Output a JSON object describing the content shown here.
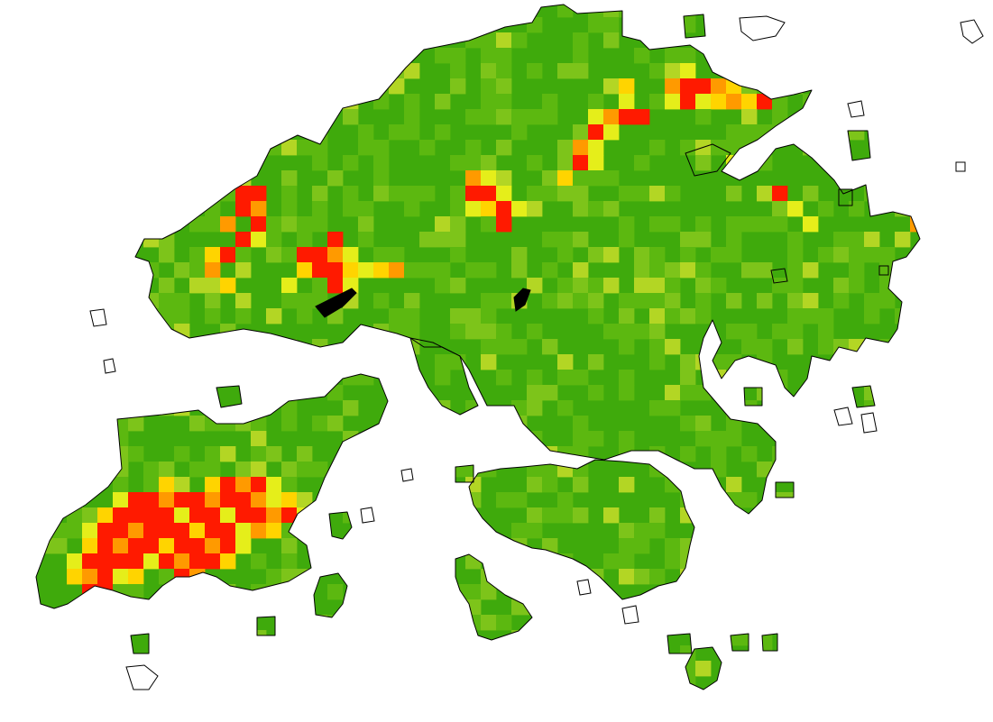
{
  "map": {
    "cell_grid_units": 17.0,
    "legend": "none",
    "colors": {
      "background": "#ffffff",
      "coastline": "#000000",
      "level_0": "#3FAA0C",
      "level_1": "#5CB810",
      "level_2": "#7DC41A",
      "level_3": "#B3D624",
      "level_4": "#E5EE1A",
      "level_5": "#FFD400",
      "level_6": "#FF9A00",
      "level_7": "#FF1A00"
    },
    "hotspots": [
      {
        "col": 13,
        "row": 12,
        "level": 7
      },
      {
        "col": 14,
        "row": 12,
        "level": 7
      },
      {
        "col": 13,
        "row": 13,
        "level": 7
      },
      {
        "col": 14,
        "row": 14,
        "level": 7
      },
      {
        "col": 12,
        "row": 14,
        "level": 6
      },
      {
        "col": 13,
        "row": 15,
        "level": 7
      },
      {
        "col": 12,
        "row": 16,
        "level": 7
      },
      {
        "col": 11,
        "row": 17,
        "level": 6
      },
      {
        "col": 12,
        "row": 18,
        "level": 5
      },
      {
        "col": 14,
        "row": 13,
        "level": 6
      },
      {
        "col": 11,
        "row": 16,
        "level": 5
      },
      {
        "col": 14,
        "row": 15,
        "level": 4
      },
      {
        "col": 17,
        "row": 16,
        "level": 7
      },
      {
        "col": 18,
        "row": 16,
        "level": 7
      },
      {
        "col": 19,
        "row": 16,
        "level": 6
      },
      {
        "col": 18,
        "row": 17,
        "level": 7
      },
      {
        "col": 19,
        "row": 17,
        "level": 7
      },
      {
        "col": 17,
        "row": 17,
        "level": 5
      },
      {
        "col": 20,
        "row": 17,
        "level": 5
      },
      {
        "col": 21,
        "row": 17,
        "level": 4
      },
      {
        "col": 19,
        "row": 15,
        "level": 7
      },
      {
        "col": 20,
        "row": 18,
        "level": 4
      },
      {
        "col": 16,
        "row": 18,
        "level": 4
      },
      {
        "col": 22,
        "row": 17,
        "level": 5
      },
      {
        "col": 19,
        "row": 18,
        "level": 7
      },
      {
        "col": 20,
        "row": 16,
        "level": 4
      },
      {
        "col": 23,
        "row": 17,
        "level": 6
      },
      {
        "col": 28,
        "row": 11,
        "level": 6
      },
      {
        "col": 29,
        "row": 11,
        "level": 4
      },
      {
        "col": 28,
        "row": 12,
        "level": 7
      },
      {
        "col": 29,
        "row": 12,
        "level": 7
      },
      {
        "col": 30,
        "row": 12,
        "level": 4
      },
      {
        "col": 29,
        "row": 13,
        "level": 5
      },
      {
        "col": 30,
        "row": 13,
        "level": 7
      },
      {
        "col": 31,
        "row": 13,
        "level": 4
      },
      {
        "col": 28,
        "row": 13,
        "level": 4
      },
      {
        "col": 30,
        "row": 14,
        "level": 7
      },
      {
        "col": 36,
        "row": 7,
        "level": 4
      },
      {
        "col": 37,
        "row": 7,
        "level": 6
      },
      {
        "col": 38,
        "row": 7,
        "level": 7
      },
      {
        "col": 39,
        "row": 7,
        "level": 7
      },
      {
        "col": 36,
        "row": 8,
        "level": 7
      },
      {
        "col": 37,
        "row": 8,
        "level": 4
      },
      {
        "col": 35,
        "row": 9,
        "level": 6
      },
      {
        "col": 36,
        "row": 9,
        "level": 4
      },
      {
        "col": 35,
        "row": 10,
        "level": 7
      },
      {
        "col": 36,
        "row": 10,
        "level": 4
      },
      {
        "col": 34,
        "row": 11,
        "level": 5
      },
      {
        "col": 38,
        "row": 6,
        "level": 4
      },
      {
        "col": 41,
        "row": 5,
        "level": 6
      },
      {
        "col": 42,
        "row": 5,
        "level": 7
      },
      {
        "col": 42,
        "row": 6,
        "level": 7
      },
      {
        "col": 43,
        "row": 5,
        "level": 7
      },
      {
        "col": 44,
        "row": 5,
        "level": 6
      },
      {
        "col": 45,
        "row": 5,
        "level": 5
      },
      {
        "col": 43,
        "row": 6,
        "level": 4
      },
      {
        "col": 44,
        "row": 6,
        "level": 5
      },
      {
        "col": 45,
        "row": 6,
        "level": 6
      },
      {
        "col": 46,
        "row": 6,
        "level": 5
      },
      {
        "col": 47,
        "row": 6,
        "level": 7
      },
      {
        "col": 41,
        "row": 6,
        "level": 4
      },
      {
        "col": 44,
        "row": 3,
        "level": 6
      },
      {
        "col": 42,
        "row": 4,
        "level": 4
      },
      {
        "col": 38,
        "row": 5,
        "level": 5
      },
      {
        "col": 45,
        "row": 10,
        "level": 4
      },
      {
        "col": 46,
        "row": 10,
        "level": 5
      },
      {
        "col": 48,
        "row": 12,
        "level": 7
      },
      {
        "col": 49,
        "row": 13,
        "level": 4
      },
      {
        "col": 57,
        "row": 14,
        "level": 6
      },
      {
        "col": 58,
        "row": 14,
        "level": 4
      },
      {
        "col": 50,
        "row": 14,
        "level": 4
      },
      {
        "col": 5,
        "row": 32,
        "level": 4
      },
      {
        "col": 6,
        "row": 32,
        "level": 7
      },
      {
        "col": 7,
        "row": 32,
        "level": 7
      },
      {
        "col": 8,
        "row": 32,
        "level": 6
      },
      {
        "col": 9,
        "row": 32,
        "level": 7
      },
      {
        "col": 10,
        "row": 32,
        "level": 7
      },
      {
        "col": 11,
        "row": 32,
        "level": 6
      },
      {
        "col": 12,
        "row": 32,
        "level": 7
      },
      {
        "col": 13,
        "row": 32,
        "level": 7
      },
      {
        "col": 14,
        "row": 32,
        "level": 6
      },
      {
        "col": 15,
        "row": 32,
        "level": 4
      },
      {
        "col": 16,
        "row": 32,
        "level": 5
      },
      {
        "col": 4,
        "row": 33,
        "level": 5
      },
      {
        "col": 5,
        "row": 33,
        "level": 7
      },
      {
        "col": 6,
        "row": 33,
        "level": 7
      },
      {
        "col": 7,
        "row": 33,
        "level": 7
      },
      {
        "col": 8,
        "row": 33,
        "level": 7
      },
      {
        "col": 9,
        "row": 33,
        "level": 4
      },
      {
        "col": 10,
        "row": 33,
        "level": 7
      },
      {
        "col": 11,
        "row": 33,
        "level": 7
      },
      {
        "col": 12,
        "row": 33,
        "level": 4
      },
      {
        "col": 13,
        "row": 33,
        "level": 7
      },
      {
        "col": 14,
        "row": 33,
        "level": 7
      },
      {
        "col": 15,
        "row": 33,
        "level": 6
      },
      {
        "col": 3,
        "row": 34,
        "level": 4
      },
      {
        "col": 4,
        "row": 34,
        "level": 7
      },
      {
        "col": 5,
        "row": 34,
        "level": 7
      },
      {
        "col": 6,
        "row": 34,
        "level": 6
      },
      {
        "col": 7,
        "row": 34,
        "level": 7
      },
      {
        "col": 8,
        "row": 34,
        "level": 7
      },
      {
        "col": 9,
        "row": 34,
        "level": 7
      },
      {
        "col": 10,
        "row": 34,
        "level": 5
      },
      {
        "col": 11,
        "row": 34,
        "level": 7
      },
      {
        "col": 12,
        "row": 34,
        "level": 7
      },
      {
        "col": 13,
        "row": 34,
        "level": 4
      },
      {
        "col": 14,
        "row": 34,
        "level": 6
      },
      {
        "col": 3,
        "row": 35,
        "level": 5
      },
      {
        "col": 4,
        "row": 35,
        "level": 7
      },
      {
        "col": 5,
        "row": 35,
        "level": 6
      },
      {
        "col": 6,
        "row": 35,
        "level": 7
      },
      {
        "col": 7,
        "row": 35,
        "level": 7
      },
      {
        "col": 8,
        "row": 35,
        "level": 5
      },
      {
        "col": 9,
        "row": 35,
        "level": 7
      },
      {
        "col": 10,
        "row": 35,
        "level": 7
      },
      {
        "col": 11,
        "row": 35,
        "level": 6
      },
      {
        "col": 12,
        "row": 35,
        "level": 7
      },
      {
        "col": 13,
        "row": 35,
        "level": 4
      },
      {
        "col": 3,
        "row": 36,
        "level": 7
      },
      {
        "col": 4,
        "row": 36,
        "level": 7
      },
      {
        "col": 5,
        "row": 36,
        "level": 7
      },
      {
        "col": 6,
        "row": 36,
        "level": 7
      },
      {
        "col": 7,
        "row": 36,
        "level": 4
      },
      {
        "col": 8,
        "row": 36,
        "level": 7
      },
      {
        "col": 9,
        "row": 36,
        "level": 6
      },
      {
        "col": 10,
        "row": 36,
        "level": 7
      },
      {
        "col": 11,
        "row": 36,
        "level": 7
      },
      {
        "col": 12,
        "row": 36,
        "level": 5
      },
      {
        "col": 3,
        "row": 37,
        "level": 6
      },
      {
        "col": 4,
        "row": 37,
        "level": 7
      },
      {
        "col": 5,
        "row": 37,
        "level": 4
      },
      {
        "col": 9,
        "row": 37,
        "level": 7
      },
      {
        "col": 10,
        "row": 37,
        "level": 6
      },
      {
        "col": 3,
        "row": 38,
        "level": 7
      },
      {
        "col": 4,
        "row": 38,
        "level": 7
      },
      {
        "col": 2,
        "row": 36,
        "level": 4
      },
      {
        "col": 2,
        "row": 37,
        "level": 5
      },
      {
        "col": 16,
        "row": 33,
        "level": 7
      },
      {
        "col": 15,
        "row": 34,
        "level": 5
      },
      {
        "col": 12,
        "row": 31,
        "level": 7
      },
      {
        "col": 13,
        "row": 31,
        "level": 6
      },
      {
        "col": 14,
        "row": 31,
        "level": 7
      },
      {
        "col": 15,
        "row": 31,
        "level": 4
      },
      {
        "col": 11,
        "row": 31,
        "level": 5
      },
      {
        "col": 8,
        "row": 31,
        "level": 5
      },
      {
        "col": 17,
        "row": 33,
        "level": 4
      },
      {
        "col": 6,
        "row": 37,
        "level": 5
      }
    ]
  }
}
